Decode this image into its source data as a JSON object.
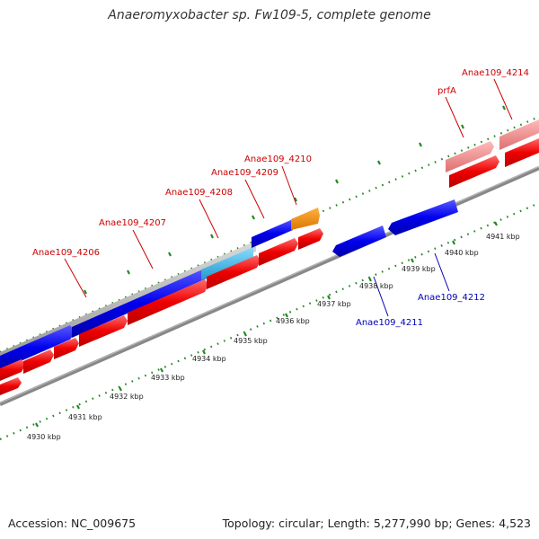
{
  "title": "Anaeromyxobacter sp. Fw109-5, complete genome",
  "footer": {
    "accession": "Accession: NC_009675",
    "summary": "Topology: circular; Length: 5,277,990 bp; Genes: 4,523"
  },
  "colors": {
    "forward_gene": "#ee0000",
    "reverse_gene": "#0000ee",
    "pseudo_gene": "#ee8888",
    "rna_gene": "#ee8800",
    "cds_light": "#33bbee",
    "backbone": "#777777",
    "ticks": "#228822",
    "label_forward": "#cc0000",
    "label_reverse": "#0000bb"
  },
  "kbp_labels": [
    "4930 kbp",
    "4931 kbp",
    "4932 kbp",
    "4933 kbp",
    "4934 kbp",
    "4935 kbp",
    "4936 kbp",
    "4937 kbp",
    "4938 kbp",
    "4939 kbp",
    "4940 kbp",
    "4941 kbp"
  ],
  "forward_labels": [
    "Anae109_4206",
    "Anae109_4207",
    "Anae109_4208",
    "Anae109_4209",
    "Anae109_4210",
    "prfA",
    "Anae109_4214"
  ],
  "reverse_labels": [
    "Anae109_4211",
    "Anae109_4212"
  ]
}
